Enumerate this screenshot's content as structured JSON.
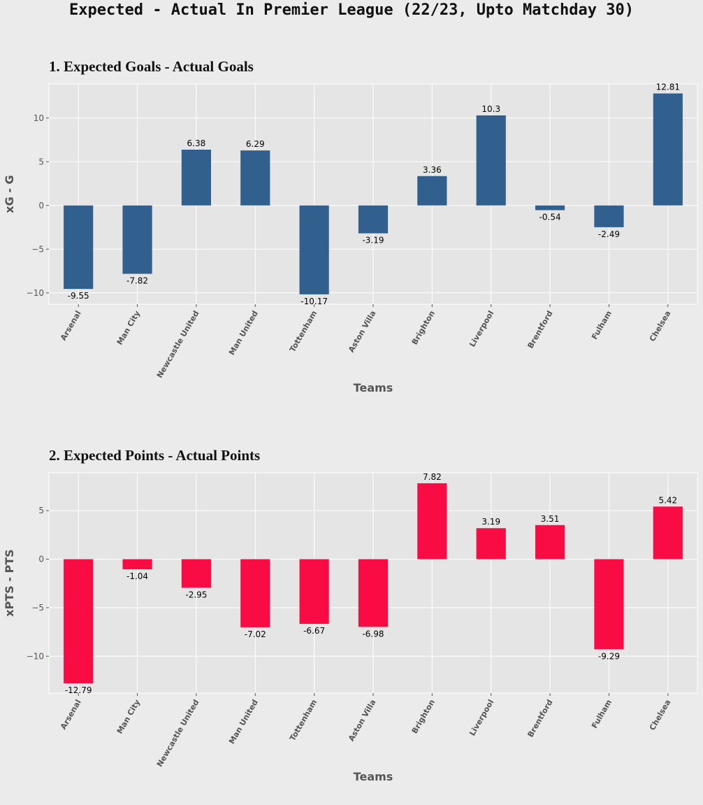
{
  "page": {
    "suptitle": "Expected - Actual In Premier League (22/23, Upto Matchday 30)"
  },
  "chart_data": [
    {
      "type": "bar",
      "title": "1. Expected Goals - Actual Goals",
      "xlabel": "Teams",
      "ylabel": "xG - G",
      "categories": [
        "Arsenal",
        "Man City",
        "Newcastle United",
        "Man United",
        "Tottenham",
        "Aston Villa",
        "Brighton",
        "Liverpool",
        "Brentford",
        "Fulham",
        "Chelsea"
      ],
      "values": [
        -9.55,
        -7.82,
        6.38,
        6.29,
        -10.17,
        -3.19,
        3.36,
        10.3,
        -0.54,
        -2.49,
        12.81
      ],
      "value_labels": [
        "-9.55",
        "-7.82",
        "6.38",
        "6.29",
        "-10.17",
        "-3.19",
        "3.36",
        "10.3",
        "-0.54",
        "-2.49",
        "12.81"
      ],
      "yticks": [
        -10,
        -5,
        0,
        5,
        10
      ],
      "ytick_labels": [
        "−10",
        "−5",
        "0",
        "5",
        "10"
      ],
      "ylim": [
        -11.3,
        13.9
      ],
      "color": "#31608e",
      "grid": true,
      "legend": "none"
    },
    {
      "type": "bar",
      "title": "2. Expected Points - Actual Points",
      "xlabel": "Teams",
      "ylabel": "xPTS - PTS",
      "categories": [
        "Arsenal",
        "Man City",
        "Newcastle United",
        "Man United",
        "Tottenham",
        "Aston Villa",
        "Brighton",
        "Liverpool",
        "Brentford",
        "Fulham",
        "Chelsea"
      ],
      "values": [
        -12.79,
        -1.04,
        -2.95,
        -7.02,
        -6.67,
        -6.98,
        7.82,
        3.19,
        3.51,
        -9.29,
        5.42
      ],
      "value_labels": [
        "-12.79",
        "-1.04",
        "-2.95",
        "-7.02",
        "-6.67",
        "-6.98",
        "7.82",
        "3.19",
        "3.51",
        "-9.29",
        "5.42"
      ],
      "yticks": [
        -10,
        -5,
        0,
        5
      ],
      "ytick_labels": [
        "−10",
        "−5",
        "0",
        "5"
      ],
      "ylim": [
        -13.8,
        8.9
      ],
      "color": "#f90b44",
      "grid": true,
      "legend": "none"
    }
  ]
}
